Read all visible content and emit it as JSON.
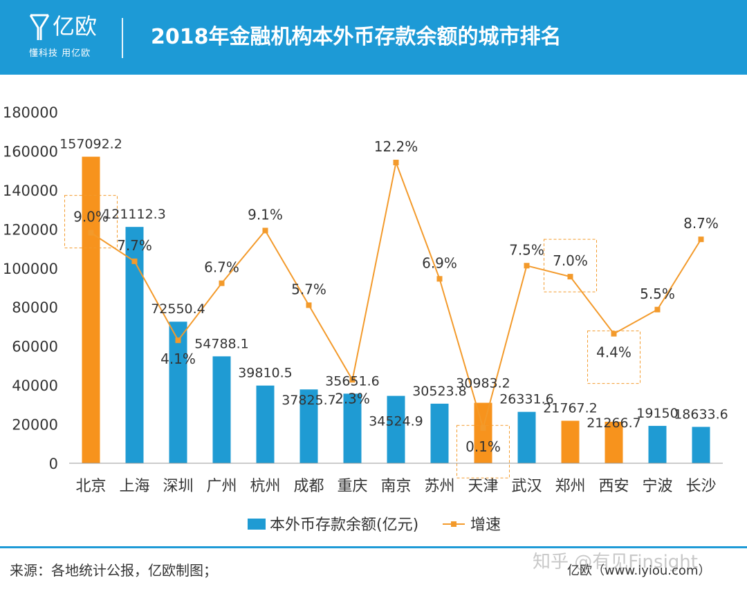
{
  "header": {
    "logo_text": "亿欧",
    "logo_slogan": "懂科技 用亿欧",
    "title": "2018年金融机构本外币存款余额的城市排名"
  },
  "colors": {
    "header_bg": "#1d9ad6",
    "bar_blue": "#1f9bd3",
    "bar_orange": "#f7931d",
    "line_orange": "#f39a2b",
    "highlight_box": "#f39a2b"
  },
  "chart_data": {
    "type": "bar",
    "title": "2018年金融机构本外币存款余额的城市排名",
    "categories": [
      "北京",
      "上海",
      "深圳",
      "广州",
      "杭州",
      "成都",
      "重庆",
      "南京",
      "苏州",
      "天津",
      "武汉",
      "郑州",
      "西安",
      "宁波",
      "长沙"
    ],
    "series": [
      {
        "name": "本外币存款余额(亿元)",
        "type": "bar",
        "values": [
          157092.2,
          121112.3,
          72550.4,
          54788.1,
          39810.5,
          37825.7,
          35651.6,
          34524.9,
          30523.8,
          30983.2,
          26331.6,
          21767.2,
          21266.7,
          19150,
          18633.6
        ],
        "labels": [
          "157092.2",
          "121112.3",
          "72550.4",
          "54788.1",
          "39810.5",
          "37825.7",
          "35651.6",
          "34524.9",
          "30523.8",
          "30983.2",
          "26331.6",
          "21767.2",
          "21266.7",
          "19150",
          "18633.6"
        ],
        "highlight_categories": [
          "北京",
          "天津",
          "郑州",
          "西安"
        ]
      },
      {
        "name": "增速",
        "type": "line",
        "values": [
          9.0,
          7.7,
          4.1,
          6.7,
          9.1,
          5.7,
          2.3,
          12.2,
          6.9,
          0.1,
          7.5,
          7.0,
          4.4,
          5.5,
          8.7
        ],
        "labels": [
          "9.0%",
          "7.7%",
          "4.1%",
          "6.7%",
          "9.1%",
          "5.7%",
          "2.3%",
          "12.2%",
          "6.9%",
          "0.1%",
          "7.5%",
          "7.0%",
          "4.4%",
          "5.5%",
          "8.7%"
        ],
        "boxed_categories": [
          "北京",
          "天津",
          "郑州",
          "西安"
        ]
      }
    ],
    "ylim": [
      0,
      180000
    ],
    "yticks": [
      0,
      20000,
      40000,
      60000,
      80000,
      100000,
      120000,
      140000,
      160000,
      180000
    ],
    "line_ylim": [
      -1.5,
      14.5
    ],
    "xlabel": "",
    "ylabel": "",
    "legend": {
      "position": "bottom-center",
      "bar_label": "本外币存款余额(亿元)",
      "line_label": "增速"
    },
    "grid": false
  },
  "footer": {
    "source": "来源：各地统计公报，亿欧制图；",
    "credit": "亿欧（www.iyiou.com）",
    "watermark": "知乎 @有见Finsight"
  }
}
